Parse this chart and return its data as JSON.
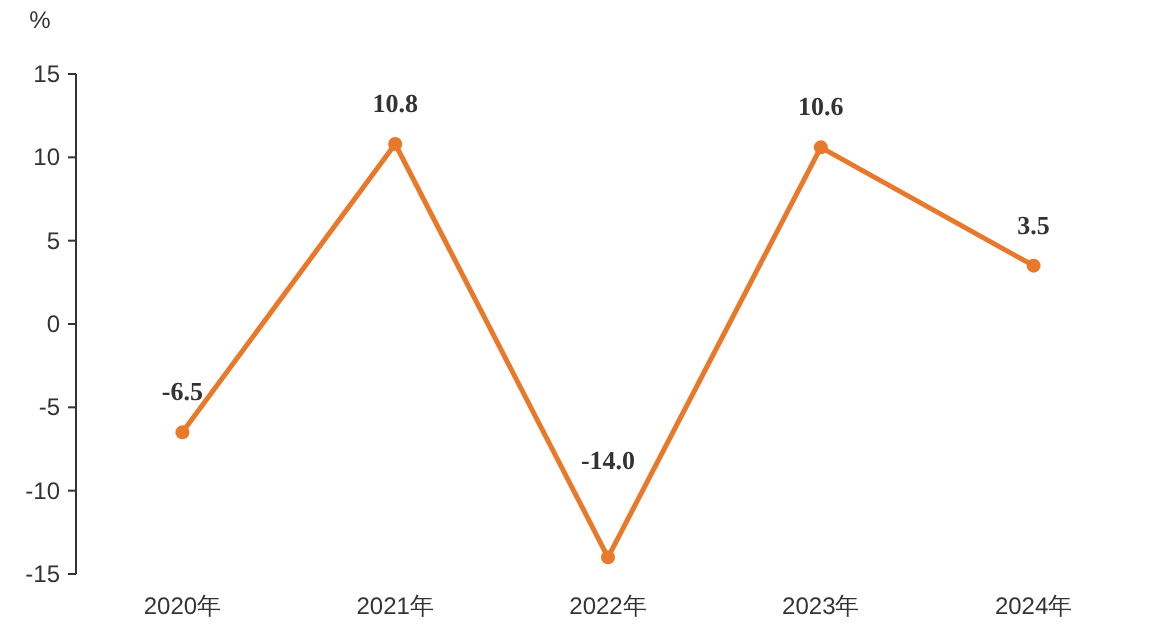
{
  "chart_data": {
    "type": "line",
    "ylabel": "%",
    "categories": [
      "2020年",
      "2021年",
      "2022年",
      "2023年",
      "2024年"
    ],
    "series": [
      {
        "color": "#e8782a",
        "values": [
          -6.5,
          10.8,
          -14.0,
          10.6,
          3.5
        ],
        "value_labels": [
          "-6.5",
          "10.8",
          "-14.0",
          "10.6",
          "3.5"
        ]
      }
    ],
    "ylim": [
      -15,
      15
    ],
    "yticks": [
      -15,
      -10,
      -5,
      0,
      5,
      10,
      15
    ],
    "marker": "circle"
  }
}
